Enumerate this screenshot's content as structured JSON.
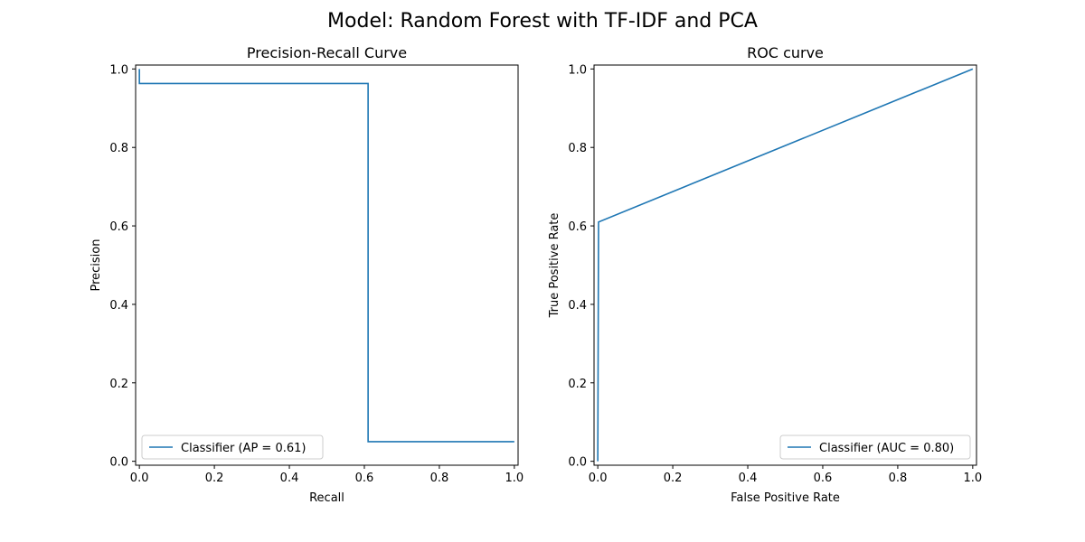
{
  "figure": {
    "suptitle": "Model: Random Forest with TF-IDF and PCA"
  },
  "chart_data": [
    {
      "type": "line",
      "title": "Precision-Recall Curve",
      "xlabel": "Recall",
      "ylabel": "Precision",
      "xlim": [
        0,
        1
      ],
      "ylim": [
        0,
        1
      ],
      "xticks": [
        "0.0",
        "0.2",
        "0.4",
        "0.6",
        "0.8",
        "1.0"
      ],
      "yticks": [
        "0.0",
        "0.2",
        "0.4",
        "0.6",
        "0.8",
        "1.0"
      ],
      "grid": false,
      "legend_position": "lower-left",
      "series": [
        {
          "name": "Classifier (AP = 0.61)",
          "color": "#1f77b4",
          "step": true,
          "x": [
            0.0,
            0.0,
            0.61,
            0.61,
            1.0
          ],
          "y": [
            1.0,
            0.963,
            0.963,
            0.05,
            0.05
          ]
        }
      ]
    },
    {
      "type": "line",
      "title": "ROC curve",
      "xlabel": "False Positive Rate",
      "ylabel": "True Positive Rate",
      "xlim": [
        0,
        1
      ],
      "ylim": [
        0,
        1
      ],
      "xticks": [
        "0.0",
        "0.2",
        "0.4",
        "0.6",
        "0.8",
        "1.0"
      ],
      "yticks": [
        "0.0",
        "0.2",
        "0.4",
        "0.6",
        "0.8",
        "1.0"
      ],
      "grid": false,
      "legend_position": "lower-right",
      "series": [
        {
          "name": "Classifier (AUC = 0.80)",
          "color": "#1f77b4",
          "step": false,
          "x": [
            0.0,
            0.002,
            1.0
          ],
          "y": [
            0.0,
            0.61,
            1.0
          ]
        }
      ]
    }
  ]
}
